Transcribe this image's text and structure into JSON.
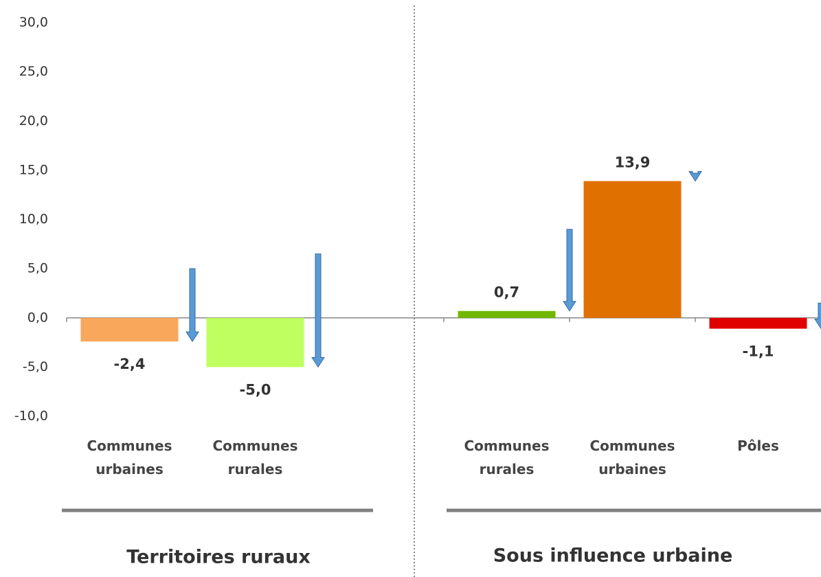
{
  "chart_data": {
    "type": "bar",
    "categories": [
      "Communes urbaines",
      "Communes rurales",
      null,
      "Communes rurales",
      "Communes urbaines",
      "Pôles"
    ],
    "values": [
      -2.4,
      -5.0,
      null,
      0.7,
      13.9,
      -1.1
    ],
    "value_labels": [
      "-2,4",
      "-5,0",
      null,
      "0,7",
      "13,9",
      "-1,1"
    ],
    "colors": [
      "#f9a75a",
      "#bfff5f",
      null,
      "#70b800",
      "#e07000",
      "#e00000"
    ],
    "arrow_from": [
      5.0,
      6.5,
      null,
      9.0,
      14.7,
      1.5
    ],
    "arrow_color": "#5b9bd5",
    "groups": [
      "Territoires ruraux",
      "Sous influence urbaine"
    ],
    "ylim": [
      -10,
      30
    ],
    "yticks": [
      {
        "value": -10,
        "label": "-10,0"
      },
      {
        "value": -5,
        "label": "-5,0"
      },
      {
        "value": 0,
        "label": "0,0"
      },
      {
        "value": 5,
        "label": "5,0"
      },
      {
        "value": 10,
        "label": "10,0"
      },
      {
        "value": 15,
        "label": "15,0"
      },
      {
        "value": 20,
        "label": "20,0"
      },
      {
        "value": 25,
        "label": "25,0"
      },
      {
        "value": 30,
        "label": "30,0"
      }
    ]
  }
}
